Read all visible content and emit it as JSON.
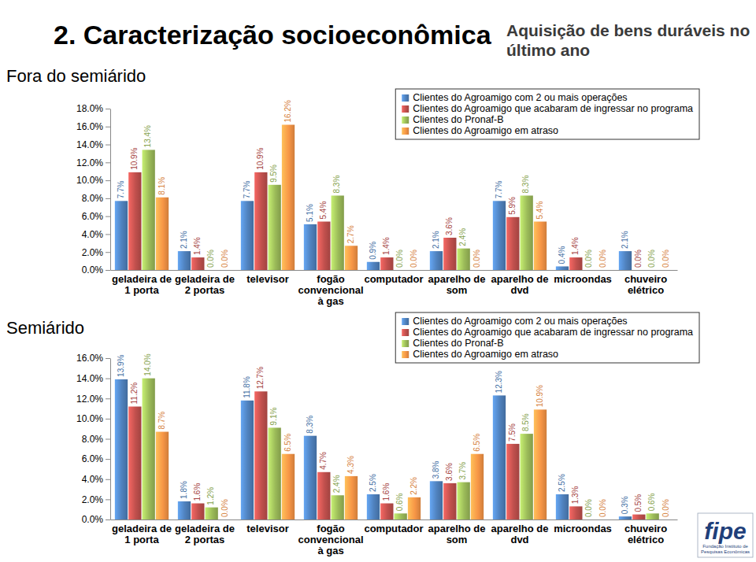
{
  "header": {
    "title": "2. Caracterização socioeconômica",
    "subtitle_lines": [
      "Aquisição de bens duráveis no",
      "último ano"
    ]
  },
  "footer": {
    "logo": "fipe",
    "organization": "Fundação Instituto de Pesquisas Econômicas"
  },
  "chart_data": [
    {
      "type": "bar",
      "title": "Fora do semiárido",
      "categories": [
        "geladeira de 1 porta",
        "geladeira de 2 portas",
        "televisor",
        "fogão convencional à gas",
        "computador",
        "aparelho de som",
        "aparelho de dvd",
        "microondas",
        "chuveiro elétrico"
      ],
      "series": [
        {
          "name": "Clientes do Agroamigo com 2 ou mais operações",
          "color": "#4F81BD",
          "values": [
            7.7,
            2.1,
            7.7,
            5.1,
            0.9,
            2.1,
            7.7,
            0.4,
            2.1
          ],
          "value_labels": [
            "7.7%",
            "2.1%",
            "7.7%",
            "5.1%",
            "0.9%",
            "2.1%",
            "7.7%",
            "0.4%",
            "2.1%"
          ]
        },
        {
          "name": "Clientes do Agroamigo que acabaram de ingressar no programa",
          "color": "#C0504D",
          "values": [
            10.9,
            1.4,
            10.9,
            5.4,
            1.4,
            3.6,
            5.9,
            1.4,
            0.0
          ],
          "value_labels": [
            "10.9%",
            "1.4%",
            "10.9%",
            "5.4%",
            "1.4%",
            "3.6%",
            "5.9%",
            "1.4%",
            "0.0%"
          ]
        },
        {
          "name": "Clientes do Pronaf-B",
          "color": "#9BBB59",
          "values": [
            13.4,
            0.0,
            9.5,
            8.3,
            0.0,
            2.4,
            8.3,
            0.0,
            0.0
          ],
          "value_labels": [
            "13.4%",
            "0.0%",
            "9.5%",
            "8.3%",
            "0.0%",
            "2.4%",
            "8.3%",
            "0.0%",
            "0.0%"
          ]
        },
        {
          "name": "Clientes do Agroamigo em atraso",
          "color": "#F79646",
          "values": [
            8.1,
            0.0,
            16.2,
            2.7,
            0.0,
            0.0,
            5.4,
            0.0,
            0.0
          ],
          "value_labels": [
            "8.1%",
            "0.0%",
            "16.2%",
            "2.7%",
            "0.0%",
            "0.0%",
            "5.4%",
            "0.0%",
            "0.0%"
          ]
        }
      ],
      "ylim": [
        0,
        18
      ],
      "yticks": [
        {
          "value": 0,
          "label": "0.0%"
        },
        {
          "value": 2,
          "label": "2.0%"
        },
        {
          "value": 4,
          "label": "4.0%"
        },
        {
          "value": 6,
          "label": "6.0%"
        },
        {
          "value": 8,
          "label": "8.0%"
        },
        {
          "value": 10,
          "label": "10.0%"
        },
        {
          "value": 12,
          "label": "12.0%"
        },
        {
          "value": 14,
          "label": "14.0%"
        },
        {
          "value": 16,
          "label": "16.0%"
        },
        {
          "value": 18,
          "label": "18.0%"
        }
      ],
      "grid": false,
      "legend": "upper right",
      "data_labels": true
    },
    {
      "type": "bar",
      "title": "Semiárido",
      "categories": [
        "geladeira de 1 porta",
        "geladeira de 2 portas",
        "televisor",
        "fogão convencional à gas",
        "computador",
        "aparelho de som",
        "aparelho de dvd",
        "microondas",
        "chuveiro elétrico"
      ],
      "series": [
        {
          "name": "Clientes do Agroamigo com 2 ou mais operações",
          "color": "#4F81BD",
          "values": [
            13.9,
            1.8,
            11.8,
            8.3,
            2.5,
            3.8,
            12.3,
            2.5,
            0.3
          ],
          "value_labels": [
            "13.9%",
            "1.8%",
            "11.8%",
            "8.3%",
            "2.5%",
            "3.8%",
            "12.3%",
            "2.5%",
            "0.3%"
          ]
        },
        {
          "name": "Clientes do Agroamigo que acabaram de ingressar no programa",
          "color": "#C0504D",
          "values": [
            11.2,
            1.6,
            12.7,
            4.7,
            1.6,
            3.6,
            7.5,
            1.3,
            0.5
          ],
          "value_labels": [
            "11.2%",
            "1.6%",
            "12.7%",
            "4.7%",
            "1.6%",
            "3.6%",
            "7.5%",
            "1.3%",
            "0.5%"
          ]
        },
        {
          "name": "Clientes do Pronaf-B",
          "color": "#9BBB59",
          "values": [
            14.0,
            1.2,
            9.1,
            2.4,
            0.6,
            3.7,
            8.5,
            0.0,
            0.6
          ],
          "value_labels": [
            "14.0%",
            "1.2%",
            "9.1%",
            "2.4%",
            "0.6%",
            "3.7%",
            "8.5%",
            "0.0%",
            "0.6%"
          ]
        },
        {
          "name": "Clientes do Agroamigo em atraso",
          "color": "#F79646",
          "values": [
            8.7,
            0.0,
            6.5,
            4.3,
            2.2,
            6.5,
            10.9,
            0.0,
            0.0
          ],
          "value_labels": [
            "8.7%",
            "0.0%",
            "6.5%",
            "4.3%",
            "2.2%",
            "6.5%",
            "10.9%",
            "0.0%",
            "0.0%"
          ]
        }
      ],
      "ylim": [
        0,
        16
      ],
      "yticks": [
        {
          "value": 0,
          "label": "0.0%"
        },
        {
          "value": 2,
          "label": "2.0%"
        },
        {
          "value": 4,
          "label": "4.0%"
        },
        {
          "value": 6,
          "label": "6.0%"
        },
        {
          "value": 8,
          "label": "8.0%"
        },
        {
          "value": 10,
          "label": "10.0%"
        },
        {
          "value": 12,
          "label": "12.0%"
        },
        {
          "value": 14,
          "label": "14.0%"
        },
        {
          "value": 16,
          "label": "16.0%"
        }
      ],
      "grid": false,
      "legend": "upper right",
      "data_labels": true
    }
  ]
}
